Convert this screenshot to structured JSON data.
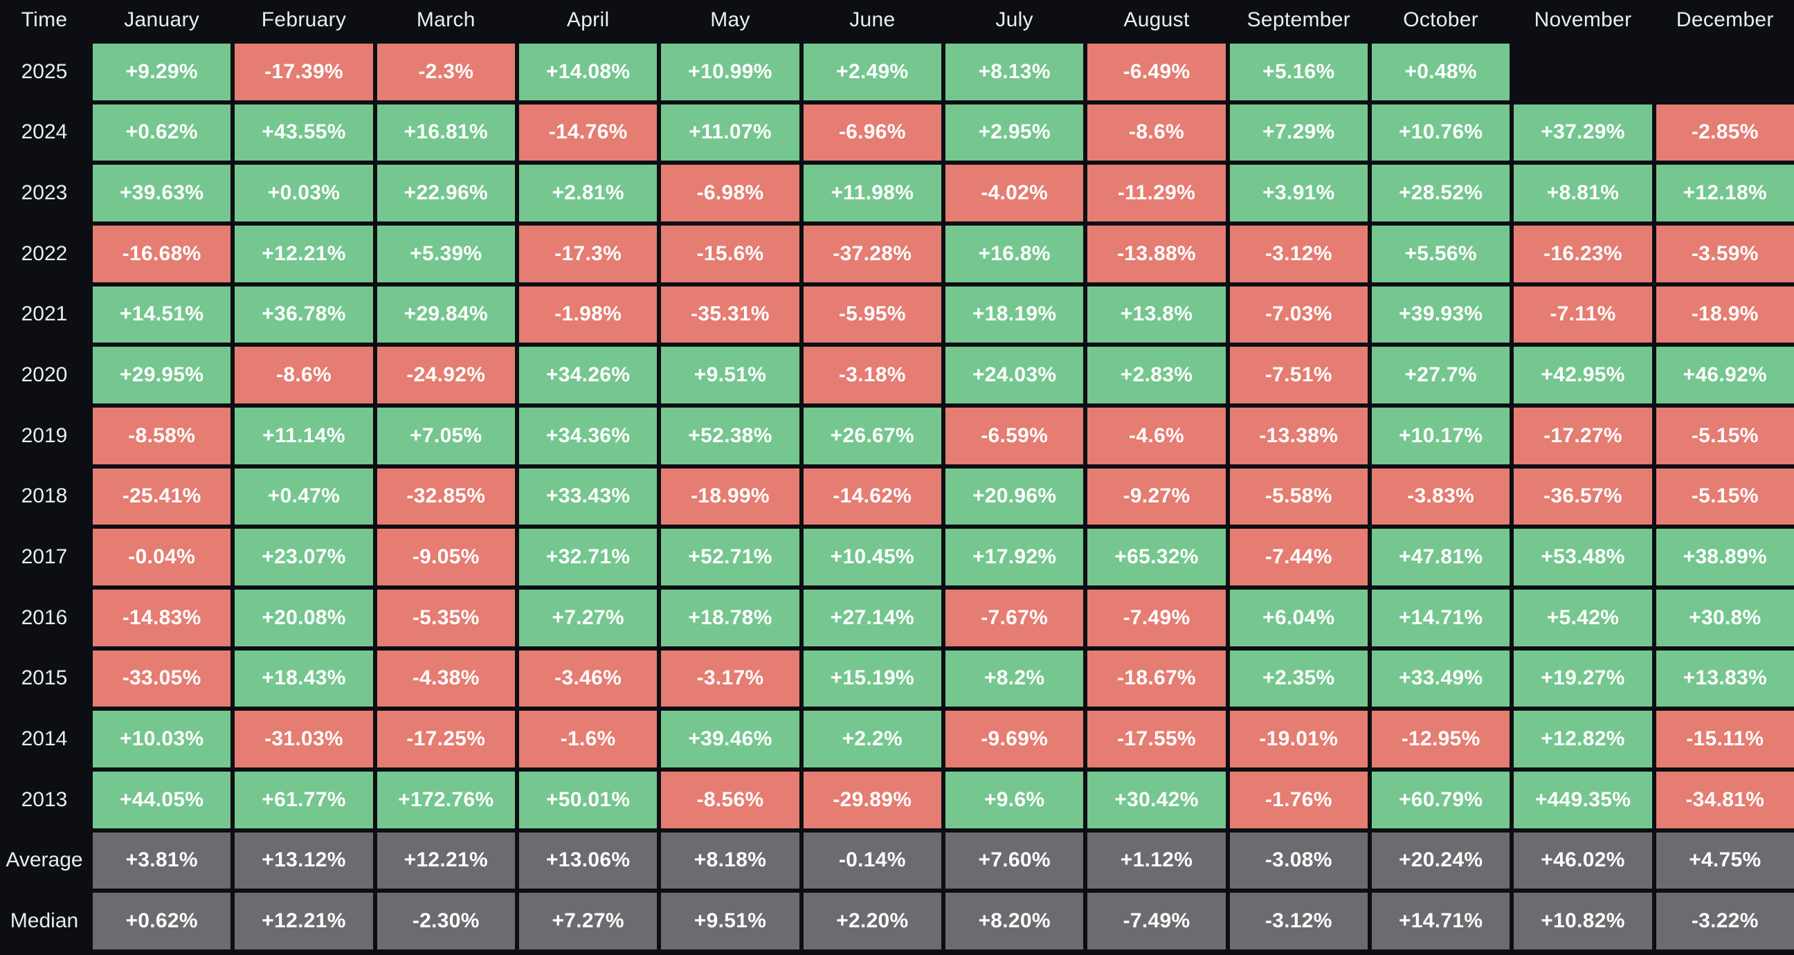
{
  "chart_data": {
    "type": "heatmap",
    "value_format": "signed percent, green = positive, red = negative, gray = summary rows",
    "columns": [
      "Time",
      "January",
      "February",
      "March",
      "April",
      "May",
      "June",
      "July",
      "August",
      "September",
      "October",
      "November",
      "December"
    ],
    "rows": [
      {
        "label": "2025",
        "type": "year",
        "values": [
          "+9.29%",
          "-17.39%",
          "-2.3%",
          "+14.08%",
          "+10.99%",
          "+2.49%",
          "+8.13%",
          "-6.49%",
          "+5.16%",
          "+0.48%",
          "",
          ""
        ]
      },
      {
        "label": "2024",
        "type": "year",
        "values": [
          "+0.62%",
          "+43.55%",
          "+16.81%",
          "-14.76%",
          "+11.07%",
          "-6.96%",
          "+2.95%",
          "-8.6%",
          "+7.29%",
          "+10.76%",
          "+37.29%",
          "-2.85%"
        ]
      },
      {
        "label": "2023",
        "type": "year",
        "values": [
          "+39.63%",
          "+0.03%",
          "+22.96%",
          "+2.81%",
          "-6.98%",
          "+11.98%",
          "-4.02%",
          "-11.29%",
          "+3.91%",
          "+28.52%",
          "+8.81%",
          "+12.18%"
        ]
      },
      {
        "label": "2022",
        "type": "year",
        "values": [
          "-16.68%",
          "+12.21%",
          "+5.39%",
          "-17.3%",
          "-15.6%",
          "-37.28%",
          "+16.8%",
          "-13.88%",
          "-3.12%",
          "+5.56%",
          "-16.23%",
          "-3.59%"
        ]
      },
      {
        "label": "2021",
        "type": "year",
        "values": [
          "+14.51%",
          "+36.78%",
          "+29.84%",
          "-1.98%",
          "-35.31%",
          "-5.95%",
          "+18.19%",
          "+13.8%",
          "-7.03%",
          "+39.93%",
          "-7.11%",
          "-18.9%"
        ]
      },
      {
        "label": "2020",
        "type": "year",
        "values": [
          "+29.95%",
          "-8.6%",
          "-24.92%",
          "+34.26%",
          "+9.51%",
          "-3.18%",
          "+24.03%",
          "+2.83%",
          "-7.51%",
          "+27.7%",
          "+42.95%",
          "+46.92%"
        ]
      },
      {
        "label": "2019",
        "type": "year",
        "values": [
          "-8.58%",
          "+11.14%",
          "+7.05%",
          "+34.36%",
          "+52.38%",
          "+26.67%",
          "-6.59%",
          "-4.6%",
          "-13.38%",
          "+10.17%",
          "-17.27%",
          "-5.15%"
        ]
      },
      {
        "label": "2018",
        "type": "year",
        "values": [
          "-25.41%",
          "+0.47%",
          "-32.85%",
          "+33.43%",
          "-18.99%",
          "-14.62%",
          "+20.96%",
          "-9.27%",
          "-5.58%",
          "-3.83%",
          "-36.57%",
          "-5.15%"
        ]
      },
      {
        "label": "2017",
        "type": "year",
        "values": [
          "-0.04%",
          "+23.07%",
          "-9.05%",
          "+32.71%",
          "+52.71%",
          "+10.45%",
          "+17.92%",
          "+65.32%",
          "-7.44%",
          "+47.81%",
          "+53.48%",
          "+38.89%"
        ]
      },
      {
        "label": "2016",
        "type": "year",
        "values": [
          "-14.83%",
          "+20.08%",
          "-5.35%",
          "+7.27%",
          "+18.78%",
          "+27.14%",
          "-7.67%",
          "-7.49%",
          "+6.04%",
          "+14.71%",
          "+5.42%",
          "+30.8%"
        ]
      },
      {
        "label": "2015",
        "type": "year",
        "values": [
          "-33.05%",
          "+18.43%",
          "-4.38%",
          "-3.46%",
          "-3.17%",
          "+15.19%",
          "+8.2%",
          "-18.67%",
          "+2.35%",
          "+33.49%",
          "+19.27%",
          "+13.83%"
        ]
      },
      {
        "label": "2014",
        "type": "year",
        "values": [
          "+10.03%",
          "-31.03%",
          "-17.25%",
          "-1.6%",
          "+39.46%",
          "+2.2%",
          "-9.69%",
          "-17.55%",
          "-19.01%",
          "-12.95%",
          "+12.82%",
          "-15.11%"
        ]
      },
      {
        "label": "2013",
        "type": "year",
        "values": [
          "+44.05%",
          "+61.77%",
          "+172.76%",
          "+50.01%",
          "-8.56%",
          "-29.89%",
          "+9.6%",
          "+30.42%",
          "-1.76%",
          "+60.79%",
          "+449.35%",
          "-34.81%"
        ]
      },
      {
        "label": "Average",
        "type": "summary",
        "values": [
          "+3.81%",
          "+13.12%",
          "+12.21%",
          "+13.06%",
          "+8.18%",
          "-0.14%",
          "+7.60%",
          "+1.12%",
          "-3.08%",
          "+20.24%",
          "+46.02%",
          "+4.75%"
        ]
      },
      {
        "label": "Median",
        "type": "summary",
        "values": [
          "+0.62%",
          "+12.21%",
          "-2.30%",
          "+7.27%",
          "+9.51%",
          "+2.20%",
          "+8.20%",
          "-7.49%",
          "-3.12%",
          "+14.71%",
          "+10.82%",
          "-3.22%"
        ]
      }
    ]
  },
  "colors": {
    "positive": "#75c78f",
    "negative": "#e57d72",
    "summary": "#6c6c70",
    "background": "#0c0e13",
    "label_text": "#e9efee",
    "value_text": "#ffffff"
  }
}
